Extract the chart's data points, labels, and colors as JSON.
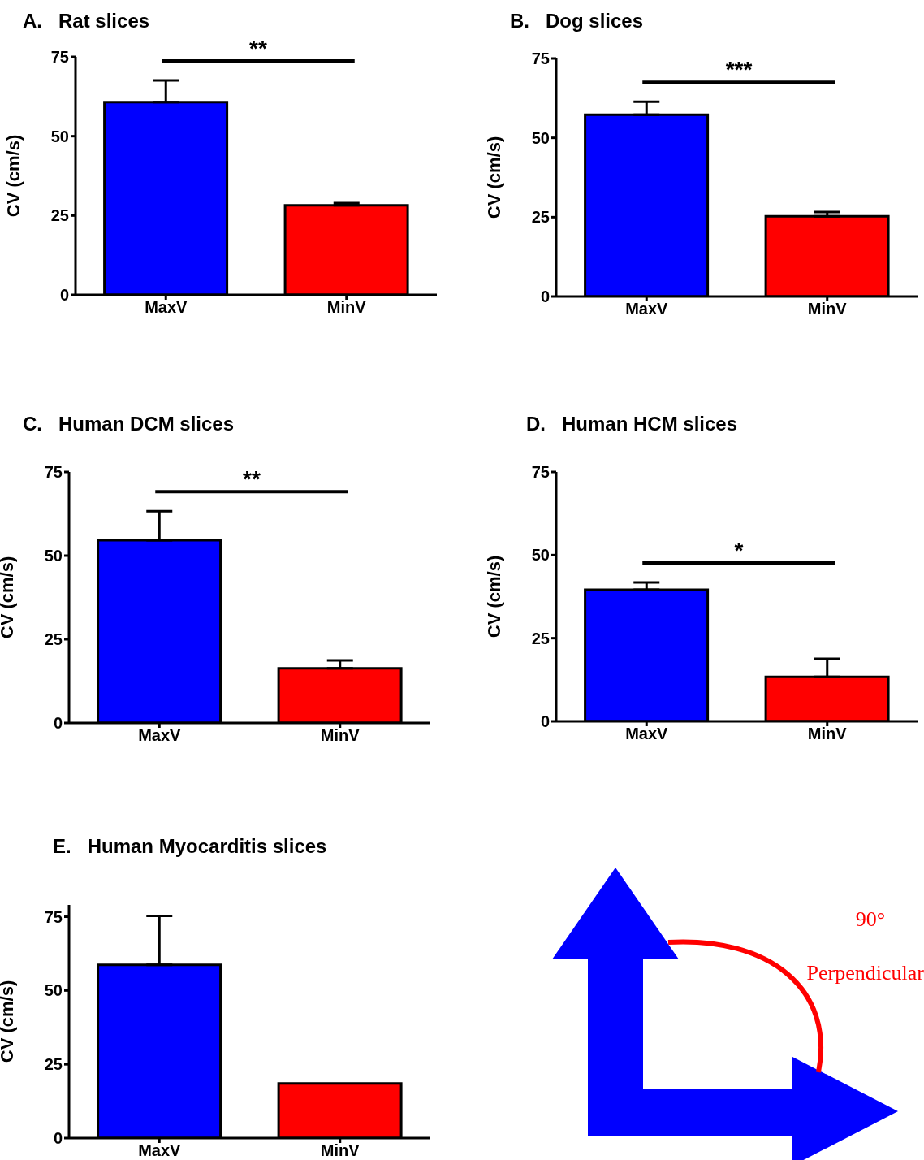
{
  "chart_data": [
    {
      "type": "bar",
      "title": "A.   Rat slices",
      "ylabel": "CV (cm/s)",
      "categories": [
        "MaxV",
        "MinV"
      ],
      "values": [
        60.7,
        28.2
      ],
      "errors": [
        [
          60.7,
          67.6
        ],
        [
          28.2,
          28.9
        ]
      ],
      "colors": [
        "#0000ff",
        "#ff0000"
      ],
      "ylim": [
        0,
        75
      ],
      "yticks": [
        0,
        25,
        50,
        75
      ],
      "annotations": [
        "**"
      ]
    },
    {
      "type": "bar",
      "title": "B.   Dog slices",
      "ylabel": "CV (cm/s)",
      "categories": [
        "MaxV",
        "MinV"
      ],
      "values": [
        57.3,
        25.3
      ],
      "errors": [
        [
          57.3,
          61.4
        ],
        [
          25.3,
          26.6
        ]
      ],
      "colors": [
        "#0000ff",
        "#ff0000"
      ],
      "ylim": [
        0,
        75
      ],
      "yticks": [
        0,
        25,
        50,
        75
      ],
      "annotations": [
        "***"
      ]
    },
    {
      "type": "bar",
      "title": "C.   Human DCM slices",
      "ylabel": "CV (cm/s)",
      "categories": [
        "MaxV",
        "MinV"
      ],
      "values": [
        54.6,
        16.3
      ],
      "errors": [
        [
          54.6,
          63.3
        ],
        [
          16.3,
          18.7
        ]
      ],
      "colors": [
        "#0000ff",
        "#ff0000"
      ],
      "ylim": [
        0,
        75
      ],
      "yticks": [
        0,
        25,
        50,
        75
      ],
      "annotations": [
        "**"
      ]
    },
    {
      "type": "bar",
      "title": "D.   Human HCM slices",
      "ylabel": "CV (cm/s)",
      "categories": [
        "MaxV",
        "MinV"
      ],
      "values": [
        39.6,
        13.4
      ],
      "errors": [
        [
          39.6,
          41.8
        ],
        [
          13.4,
          18.8
        ]
      ],
      "colors": [
        "#0000ff",
        "#ff0000"
      ],
      "ylim": [
        0,
        75
      ],
      "yticks": [
        0,
        25,
        50,
        75
      ],
      "annotations": [
        "*"
      ]
    },
    {
      "type": "bar",
      "title": "E.   Human Myocarditis slices",
      "ylabel": "CV (cm/s)",
      "categories": [
        "MaxV",
        "MinV"
      ],
      "values": [
        58.7,
        18.5
      ],
      "errors": [
        [
          58.7,
          75.3
        ],
        null
      ],
      "colors": [
        "#0000ff",
        "#ff0000"
      ],
      "ylim": [
        0,
        79
      ],
      "yticks": [
        0,
        25,
        50,
        75
      ]
    },
    {
      "type": "other",
      "annotations": [
        "90°",
        "Perpendicular"
      ]
    }
  ]
}
